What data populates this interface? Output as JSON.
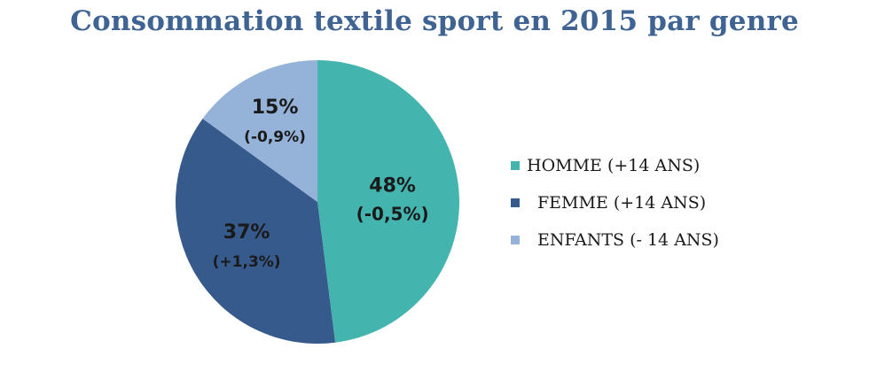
{
  "chart_data": {
    "type": "pie",
    "title": "Consommation textile sport en 2015 par genre",
    "slices": [
      {
        "label": "HOMME (+14 ANS)",
        "value": 48,
        "value_text": "48%",
        "change_text": "(-0,5%)",
        "color": "#44b5ae"
      },
      {
        "label": "FEMME (+14 ANS)",
        "value": 37,
        "value_text": "37%",
        "change_text": "(+1,3%)",
        "color": "#365a8c"
      },
      {
        "label": "ENFANTS (- 14 ANS)",
        "value": 15,
        "value_text": "15%",
        "change_text": "(-0,9%)",
        "color": "#95b2d8"
      }
    ],
    "legend_position": "right"
  }
}
